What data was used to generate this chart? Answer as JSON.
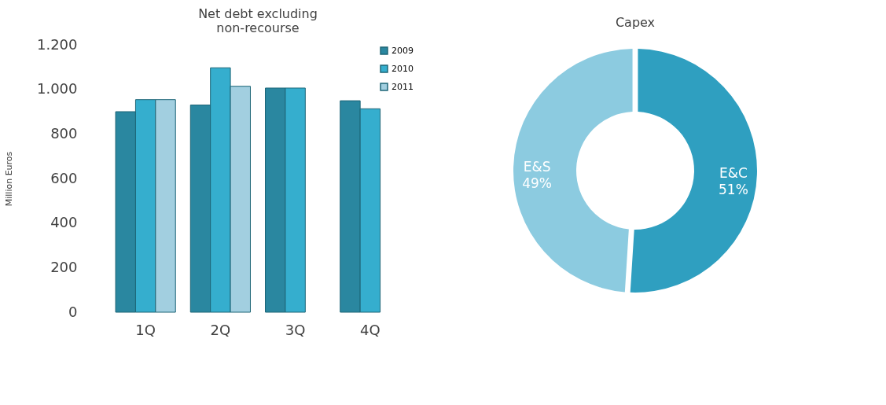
{
  "chart_data": [
    {
      "type": "bar",
      "title": "Net debt excluding\nnon-recourse",
      "ylabel": "Million Euros",
      "categories": [
        "1Q",
        "2Q",
        "3Q",
        "4Q"
      ],
      "series": [
        {
          "name": "2009",
          "color": "#2a87a0",
          "values": [
            900,
            930,
            1006,
            949
          ]
        },
        {
          "name": "2010",
          "color": "#35aece",
          "values": [
            954,
            1097,
            1006,
            913
          ]
        },
        {
          "name": "2011",
          "color": "#a2cfe0",
          "values": [
            954,
            1014,
            null,
            null
          ]
        }
      ],
      "ylim": [
        0,
        1200
      ],
      "yticks": [
        0,
        200,
        400,
        600,
        800,
        {
          "value": 1000,
          "label": "1.000"
        },
        {
          "value": 1200,
          "label": "1.200"
        }
      ],
      "grid": false,
      "legend": "top right"
    },
    {
      "type": "donut",
      "title": "Capex",
      "categories": [
        "E&C",
        "E&S"
      ],
      "values": [
        51,
        49
      ],
      "colors": [
        "#2f9fc0",
        "#8ccbe0"
      ],
      "value_labels": [
        "51%",
        "49%"
      ]
    }
  ]
}
